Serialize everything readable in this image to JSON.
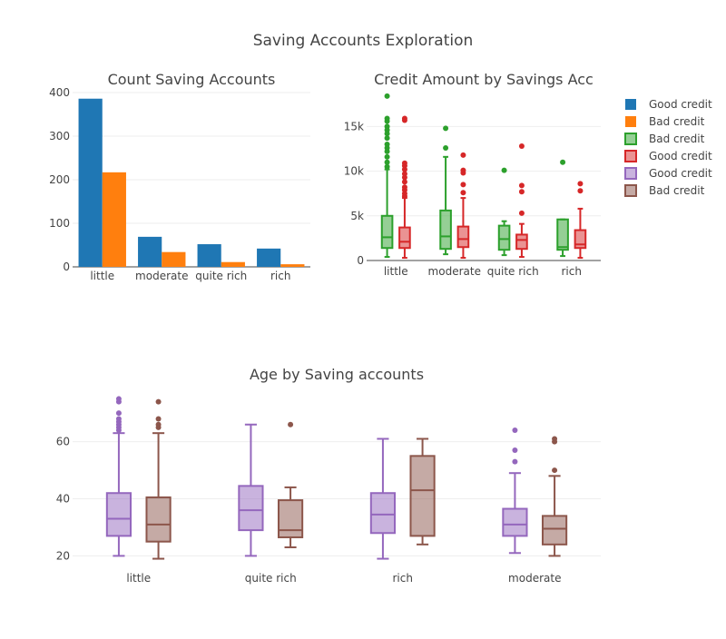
{
  "title": "Saving Accounts Exploration",
  "colors": {
    "good": "#1f77b4",
    "bad": "#ff7f0e",
    "green": "#2ca02c",
    "red": "#d62728",
    "purple": "#9467bd",
    "brown": "#8c564b"
  },
  "legend": [
    {
      "label": "Good credit",
      "color": "#1f77b4",
      "kind": "bar"
    },
    {
      "label": "Bad credit",
      "color": "#ff7f0e",
      "kind": "bar"
    },
    {
      "label": "Bad credit",
      "color": "#2ca02c",
      "kind": "box"
    },
    {
      "label": "Good credit",
      "color": "#d62728",
      "kind": "box"
    },
    {
      "label": "Good credit",
      "color": "#9467bd",
      "kind": "box"
    },
    {
      "label": "Bad credit",
      "color": "#8c564b",
      "kind": "box"
    }
  ],
  "chart_data": [
    {
      "type": "bar",
      "title": "Count Saving Accounts",
      "categories": [
        "little",
        "moderate",
        "quite rich",
        "rich"
      ],
      "ylim": [
        0,
        400
      ],
      "yticks": [
        0,
        100,
        200,
        300,
        400
      ],
      "series": [
        {
          "name": "Good credit",
          "color": "#1f77b4",
          "values": [
            386,
            69,
            52,
            42
          ]
        },
        {
          "name": "Bad credit",
          "color": "#ff7f0e",
          "values": [
            217,
            34,
            11,
            6
          ]
        }
      ]
    },
    {
      "type": "box",
      "title": "Credit Amount by Savings Acc",
      "categories": [
        "little",
        "moderate",
        "quite rich",
        "rich"
      ],
      "ylim": [
        0,
        19000
      ],
      "yticks": [
        0,
        5000,
        10000,
        15000
      ],
      "ytick_labels": [
        "0",
        "5k",
        "10k",
        "15k"
      ],
      "series": [
        {
          "name": "Bad credit",
          "color": "#2ca02c",
          "boxes": [
            {
              "min": 400,
              "q1": 1400,
              "median": 2600,
              "q3": 5000,
              "max": 10200,
              "outliers": [
                10500,
                11000,
                11600,
                12200,
                12600,
                13000,
                13700,
                14200,
                14600,
                15000,
                15600,
                15900,
                18400
              ]
            },
            {
              "min": 700,
              "q1": 1300,
              "median": 2700,
              "q3": 5600,
              "max": 11600,
              "outliers": [
                12600,
                14800
              ]
            },
            {
              "min": 600,
              "q1": 1200,
              "median": 2400,
              "q3": 3900,
              "max": 4400,
              "outliers": [
                10100
              ]
            },
            {
              "min": 500,
              "q1": 1200,
              "median": 1500,
              "q3": 4600,
              "max": 4600,
              "outliers": [
                11000
              ]
            }
          ]
        },
        {
          "name": "Good credit",
          "color": "#d62728",
          "boxes": [
            {
              "min": 300,
              "q1": 1400,
              "median": 2100,
              "q3": 3700,
              "max": 7000,
              "outliers": [
                7200,
                7500,
                7900,
                8200,
                8800,
                9300,
                9700,
                10200,
                10600,
                10900,
                15700,
                15900
              ]
            },
            {
              "min": 300,
              "q1": 1500,
              "median": 2400,
              "q3": 3800,
              "max": 7000,
              "outliers": [
                7600,
                8500,
                9800,
                10100,
                11800
              ]
            },
            {
              "min": 400,
              "q1": 1300,
              "median": 2300,
              "q3": 2900,
              "max": 4100,
              "outliers": [
                5300,
                7700,
                8400,
                12800
              ]
            },
            {
              "min": 300,
              "q1": 1400,
              "median": 1800,
              "q3": 3400,
              "max": 5800,
              "outliers": [
                7800,
                8600
              ]
            }
          ]
        }
      ]
    },
    {
      "type": "box",
      "title": "Age by Saving accounts",
      "categories": [
        "little",
        "quite rich",
        "rich",
        "moderate"
      ],
      "ylim": [
        16,
        78
      ],
      "yticks": [
        20,
        40,
        60
      ],
      "ytick_labels": [
        "20",
        "40",
        "60"
      ],
      "series": [
        {
          "name": "Good credit",
          "color": "#9467bd",
          "boxes": [
            {
              "min": 20,
              "q1": 27,
              "median": 33,
              "q3": 42,
              "max": 63,
              "outliers": [
                64,
                65,
                66,
                67,
                68,
                70,
                74,
                75
              ]
            },
            {
              "min": 20,
              "q1": 29,
              "median": 36,
              "q3": 44.5,
              "max": 66,
              "outliers": []
            },
            {
              "min": 19,
              "q1": 28,
              "median": 34.5,
              "q3": 42,
              "max": 61,
              "outliers": []
            },
            {
              "min": 21,
              "q1": 27,
              "median": 31,
              "q3": 36.5,
              "max": 49,
              "outliers": [
                53,
                57,
                64
              ]
            }
          ]
        },
        {
          "name": "Bad credit",
          "color": "#8c564b",
          "boxes": [
            {
              "min": 19,
              "q1": 25,
              "median": 31,
              "q3": 40.5,
              "max": 63,
              "outliers": [
                65,
                66,
                68,
                74
              ]
            },
            {
              "min": 23,
              "q1": 26.5,
              "median": 29,
              "q3": 39.5,
              "max": 44,
              "outliers": [
                66
              ]
            },
            {
              "min": 24,
              "q1": 27,
              "median": 43,
              "q3": 55,
              "max": 61,
              "outliers": []
            },
            {
              "min": 20,
              "q1": 24,
              "median": 29.5,
              "q3": 34,
              "max": 48,
              "outliers": [
                50,
                60,
                61
              ]
            }
          ]
        }
      ]
    }
  ]
}
